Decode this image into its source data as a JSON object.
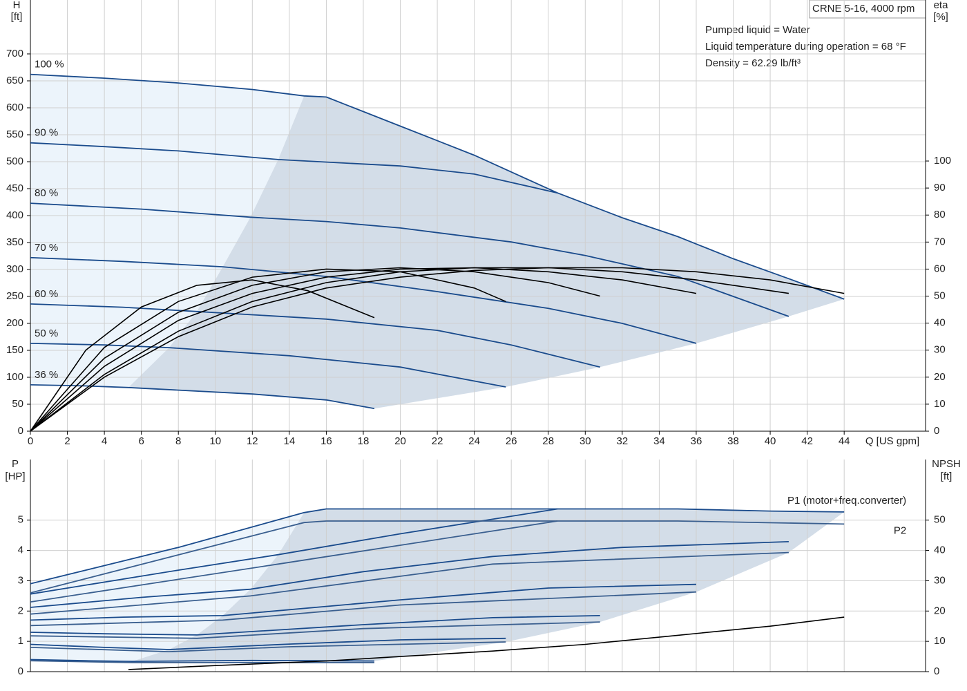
{
  "chart_data": [
    {
      "type": "line",
      "title": "CRNE 5-16, 4000 rpm",
      "annotations": [
        "Pumped liquid = Water",
        "Liquid temperature during operation = 68 °F",
        "Density = 62.29 lb/ft³"
      ],
      "y_label": "H",
      "y_unit": "[ft]",
      "y2_label": "eta",
      "y2_unit": "[%]",
      "x_label": "Q [US gpm]",
      "xlim": [
        0,
        48.4
      ],
      "xticks": [
        0,
        2,
        4,
        6,
        8,
        10,
        12,
        14,
        16,
        18,
        20,
        22,
        24,
        26,
        28,
        30,
        32,
        34,
        36,
        38,
        40,
        42,
        44
      ],
      "ylim": [
        0,
        800
      ],
      "yticks": [
        0,
        50,
        100,
        150,
        200,
        250,
        300,
        350,
        400,
        450,
        500,
        550,
        600,
        650,
        700
      ],
      "y2lim": [
        0,
        159.6
      ],
      "y2ticks": [
        0,
        10,
        20,
        30,
        40,
        50,
        60,
        70,
        80,
        90,
        100
      ],
      "grid": true,
      "areas": [
        {
          "color": "#ecf4fb",
          "x": [
            0,
            4,
            8,
            12,
            14.8,
            13.4,
            11.9,
            10.4,
            9,
            7.5,
            5.3,
            0
          ],
          "values": [
            662,
            655,
            646,
            634,
            622,
            504,
            397,
            305,
            222,
            155,
            81,
            86
          ]
        },
        {
          "color": "#d3dde8",
          "x": [
            5.3,
            7.5,
            9,
            10.4,
            11.9,
            13.4,
            14.8,
            16,
            20,
            24,
            28.5,
            32,
            35,
            38,
            41,
            44,
            41,
            36,
            30.8,
            25.7,
            18.6,
            16,
            12,
            5.3
          ],
          "values": [
            81,
            155,
            222,
            305,
            397,
            504,
            622,
            620,
            566,
            512,
            442,
            396,
            361,
            320,
            283,
            245,
            213,
            163,
            119,
            82,
            42,
            58,
            69,
            81
          ]
        }
      ],
      "series": [
        {
          "name": "100 %",
          "color": "#1a4b8c",
          "x": [
            0,
            4,
            8,
            12,
            14.8,
            16
          ],
          "values": [
            662,
            655,
            646,
            634,
            622,
            620
          ]
        },
        {
          "color": "#1a4b8c",
          "x": [
            16,
            20,
            24,
            28.5,
            32,
            35,
            38,
            41,
            44
          ],
          "values": [
            620,
            566,
            512,
            442,
            396,
            361,
            320,
            283,
            245
          ]
        },
        {
          "name": "90 %",
          "color": "#1a4b8c",
          "x": [
            0,
            4,
            8,
            13.4,
            20,
            24,
            28.5
          ],
          "values": [
            535,
            528,
            520,
            504,
            492,
            477,
            442
          ]
        },
        {
          "name": "80 %",
          "color": "#1a4b8c",
          "x": [
            0,
            6,
            11.9,
            16,
            20,
            26,
            30,
            35,
            41
          ],
          "values": [
            423,
            412,
            397,
            389,
            377,
            351,
            326,
            287,
            213
          ]
        },
        {
          "name": "70 %",
          "color": "#1a4b8c",
          "x": [
            0,
            5,
            10.4,
            16,
            22,
            28,
            32,
            36
          ],
          "values": [
            322,
            315,
            305,
            287,
            259,
            228,
            200,
            163
          ]
        },
        {
          "name": "60 %",
          "color": "#1a4b8c",
          "x": [
            0,
            5,
            9,
            16,
            22,
            26,
            30.8
          ],
          "values": [
            236,
            230,
            222,
            208,
            187,
            160,
            119
          ]
        },
        {
          "name": "50 %",
          "color": "#1a4b8c",
          "x": [
            0,
            4,
            7.5,
            14,
            20,
            25.7
          ],
          "values": [
            163,
            160,
            155,
            140,
            119,
            82
          ]
        },
        {
          "name": "36 %",
          "color": "#1a4b8c",
          "x": [
            0,
            3,
            5.3,
            12,
            16,
            18.6
          ],
          "values": [
            86,
            84,
            81,
            69,
            58,
            42
          ]
        },
        {
          "color": "#000000",
          "axis": "y2",
          "x": [
            0,
            4,
            8,
            12,
            16,
            20,
            24,
            28,
            32,
            36,
            40,
            44
          ],
          "values": [
            0,
            20,
            35,
            46,
            53,
            57,
            59.5,
            60.5,
            60.5,
            59,
            56,
            51
          ]
        },
        {
          "color": "#000000",
          "axis": "y2",
          "x": [
            0,
            4,
            8,
            12,
            16,
            20,
            24,
            28,
            32,
            36,
            41
          ],
          "values": [
            0,
            21,
            37,
            48,
            55,
            59,
            60.5,
            60.5,
            59,
            56,
            51
          ]
        },
        {
          "color": "#000000",
          "axis": "y2",
          "x": [
            0,
            4,
            8,
            12,
            16,
            20,
            24,
            28,
            32,
            36
          ],
          "values": [
            0,
            24,
            41,
            51,
            57,
            60,
            60.5,
            59,
            56,
            51
          ]
        },
        {
          "color": "#000000",
          "axis": "y2",
          "x": [
            0,
            4,
            8,
            12,
            16,
            20,
            24,
            28,
            30.8
          ],
          "values": [
            0,
            27,
            44,
            54,
            59,
            60.5,
            59,
            55,
            50
          ]
        },
        {
          "color": "#000000",
          "axis": "y2",
          "x": [
            0,
            4,
            8,
            12,
            16,
            20,
            24,
            25.7
          ],
          "values": [
            0,
            31,
            48,
            57,
            60,
            59,
            53,
            48
          ]
        },
        {
          "color": "#000000",
          "axis": "y2",
          "x": [
            0,
            3,
            6,
            9,
            12,
            15,
            18.6
          ],
          "values": [
            0,
            30,
            46,
            54,
            56,
            52,
            42
          ]
        }
      ]
    },
    {
      "type": "line",
      "y_label": "P",
      "y_unit": "[HP]",
      "y2_label": "NPSH",
      "y2_unit": "[ft]",
      "xlim": [
        0,
        48.4
      ],
      "ylim": [
        0,
        7
      ],
      "yticks": [
        0,
        1,
        2,
        3,
        4,
        5
      ],
      "y2lim": [
        0,
        70
      ],
      "y2ticks": [
        0,
        10,
        20,
        30,
        40,
        50
      ],
      "grid": true,
      "areas": [
        {
          "color": "#ecf4fb",
          "x": [
            0,
            8,
            14.8,
            13.4,
            11.9,
            10.4,
            9,
            7.5,
            5.5,
            0
          ],
          "values": [
            2.9,
            4.1,
            5.25,
            3.86,
            2.72,
            1.85,
            1.21,
            0.73,
            0.34,
            0.4
          ]
        },
        {
          "color": "#d3dde8",
          "x": [
            5.5,
            7.5,
            9,
            10.4,
            11.9,
            13.4,
            14.8,
            16,
            35,
            44,
            41,
            36,
            30.8,
            25.7,
            18.6,
            5.5
          ],
          "values": [
            0.34,
            0.73,
            1.21,
            1.85,
            2.72,
            3.86,
            5.25,
            5.37,
            5.37,
            5.27,
            3.93,
            2.63,
            1.64,
            0.98,
            0.35,
            0.34
          ]
        }
      ],
      "series": [
        {
          "name": "P1 (motor+freq.converter)",
          "color": "#1a4b8c",
          "x": [
            0,
            8,
            14.8,
            16,
            24,
            35,
            40,
            44
          ],
          "values": [
            2.9,
            4.1,
            5.25,
            5.37,
            5.37,
            5.37,
            5.3,
            5.27
          ]
        },
        {
          "color": "#1a4b8c",
          "x": [
            0,
            8,
            13.4,
            20,
            28.5
          ],
          "values": [
            2.56,
            3.35,
            3.86,
            4.55,
            5.37
          ]
        },
        {
          "color": "#1a4b8c",
          "x": [
            0,
            6,
            11.9,
            18,
            25,
            32,
            41
          ],
          "values": [
            2.12,
            2.45,
            2.72,
            3.3,
            3.8,
            4.1,
            4.29
          ]
        },
        {
          "color": "#1a4b8c",
          "x": [
            0,
            5,
            10.4,
            20,
            28,
            36
          ],
          "values": [
            1.7,
            1.8,
            1.85,
            2.37,
            2.76,
            2.88
          ]
        },
        {
          "color": "#1a4b8c",
          "x": [
            0,
            4,
            9,
            18,
            25,
            30.8
          ],
          "values": [
            1.3,
            1.25,
            1.21,
            1.55,
            1.78,
            1.85
          ]
        },
        {
          "color": "#1a4b8c",
          "x": [
            0,
            4,
            7.5,
            14,
            20,
            25.7
          ],
          "values": [
            0.9,
            0.8,
            0.73,
            0.91,
            1.05,
            1.1
          ]
        },
        {
          "color": "#1a4b8c",
          "x": [
            0,
            3,
            5.5,
            12,
            18.6
          ],
          "values": [
            0.4,
            0.36,
            0.34,
            0.37,
            0.35
          ]
        },
        {
          "name": "P2",
          "color": "#3a5f8f",
          "x": [
            0,
            14.8,
            16,
            28.5,
            35,
            44
          ],
          "values": [
            2.6,
            4.92,
            4.97,
            4.97,
            4.97,
            4.87
          ]
        },
        {
          "color": "#3a5f8f",
          "x": [
            0,
            13.4,
            28.5
          ],
          "values": [
            2.3,
            3.55,
            4.97
          ]
        },
        {
          "color": "#3a5f8f",
          "x": [
            0,
            11.9,
            25,
            41
          ],
          "values": [
            1.9,
            2.5,
            3.55,
            3.93
          ]
        },
        {
          "color": "#3a5f8f",
          "x": [
            0,
            10.4,
            20,
            36
          ],
          "values": [
            1.52,
            1.7,
            2.2,
            2.63
          ]
        },
        {
          "color": "#3a5f8f",
          "x": [
            0,
            9,
            18,
            30.8
          ],
          "values": [
            1.18,
            1.1,
            1.42,
            1.64
          ]
        },
        {
          "color": "#3a5f8f",
          "x": [
            0,
            7.5,
            14,
            25.7
          ],
          "values": [
            0.8,
            0.66,
            0.82,
            0.98
          ]
        },
        {
          "color": "#3a5f8f",
          "x": [
            0,
            5.5,
            18.6
          ],
          "values": [
            0.36,
            0.3,
            0.3
          ]
        },
        {
          "color": "#000000",
          "axis": "y2",
          "x": [
            5.3,
            10,
            16,
            20,
            25,
            30,
            35,
            40,
            44
          ],
          "values": [
            0.7,
            2,
            3.5,
            5,
            6.8,
            9,
            12,
            15,
            18
          ]
        }
      ]
    }
  ]
}
